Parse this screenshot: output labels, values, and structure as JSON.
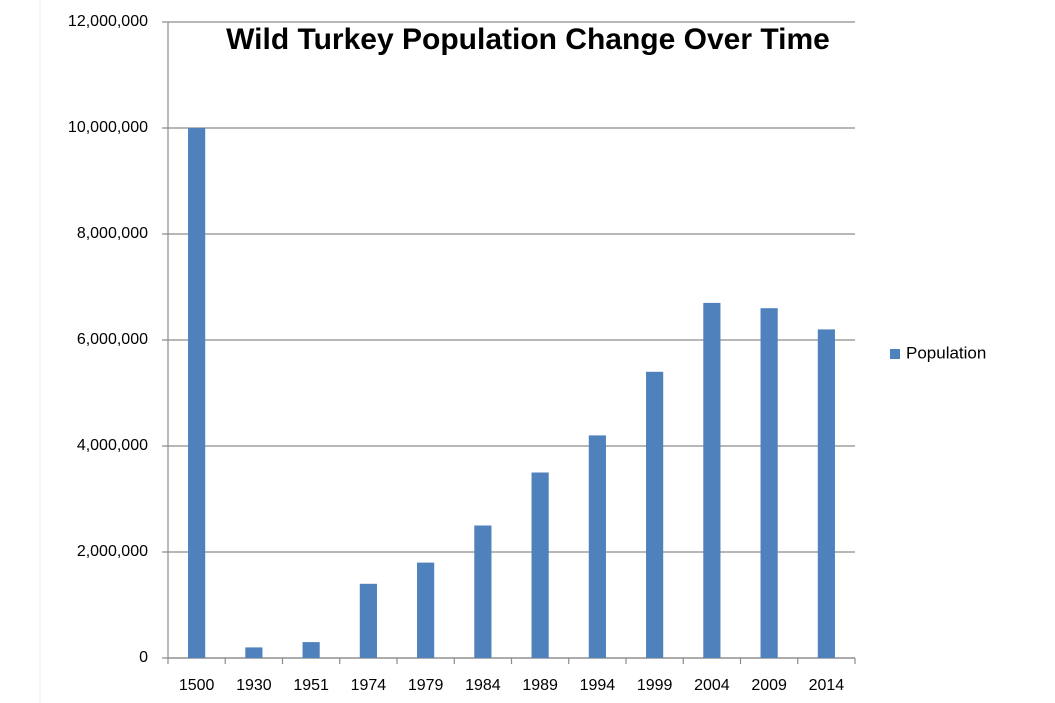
{
  "chart_data": {
    "type": "bar",
    "title": "Wild Turkey Population Change Over Time",
    "categories": [
      "1500",
      "1930",
      "1951",
      "1974",
      "1979",
      "1984",
      "1989",
      "1994",
      "1999",
      "2004",
      "2009",
      "2014"
    ],
    "series": [
      {
        "name": "Population",
        "color": "#4f81bd",
        "values": [
          10000000,
          200000,
          300000,
          1400000,
          1800000,
          2500000,
          3500000,
          4200000,
          5400000,
          6700000,
          6600000,
          6200000
        ]
      }
    ],
    "ylim": [
      0,
      12000000
    ],
    "yticks": [
      0,
      {
        "value": 2000000,
        "label": "2,000,000"
      },
      {
        "value": 4000000,
        "label": "4,000,000"
      },
      {
        "value": 6000000,
        "label": "6,000,000"
      },
      {
        "value": 8000000,
        "label": "8,000,000"
      },
      {
        "value": 10000000,
        "label": "10,000,000"
      },
      {
        "value": 12000000,
        "label": "12,000,000"
      }
    ],
    "grid": true,
    "legend": "right"
  }
}
